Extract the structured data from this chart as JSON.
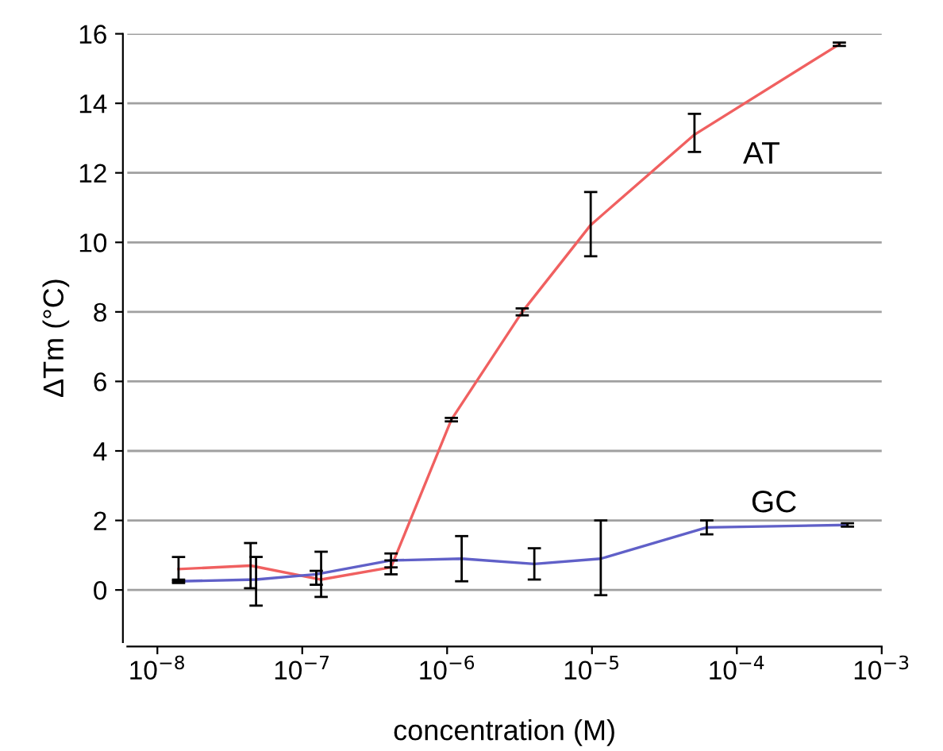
{
  "chart_data": {
    "type": "line",
    "xlabel": "concentration (M)",
    "ylabel": "ΔTm (°C)",
    "log": "x",
    "grid": "y",
    "marker": "none",
    "line_style": "solid",
    "xlim": [
      6.2e-09,
      0.001
    ],
    "ylim": [
      -1.5,
      16
    ],
    "xticks": [
      {
        "value": 1e-08,
        "label": "10$^{−8}$"
      },
      {
        "value": 1e-07,
        "label": "10$^{−7}$"
      },
      {
        "value": 1e-06,
        "label": "10$^{−6}$"
      },
      {
        "value": 1e-05,
        "label": "10$^{−5}$"
      },
      {
        "value": 0.0001,
        "label": "10$^{−4}$"
      },
      {
        "value": 0.001,
        "label": "10$^{−3}$"
      }
    ],
    "yticks": [
      0,
      2,
      4,
      6,
      8,
      10,
      12,
      14,
      16
    ],
    "series": [
      {
        "name": "AT",
        "color": "#f06060",
        "x": [
          1.4e-08,
          4.4e-08,
          1.35e-07,
          4.1e-07,
          1.07e-06,
          3.3e-06,
          9.8e-06,
          5.1e-05,
          0.00051
        ],
        "values": [
          0.6,
          0.7,
          0.3,
          0.65,
          4.9,
          8.0,
          10.5,
          13.1,
          15.7
        ],
        "errors": [
          [
            0.25,
            0.95
          ],
          [
            0.05,
            1.35
          ],
          [
            -0.2,
            1.1
          ],
          [
            0.45,
            0.85
          ],
          [
            4.85,
            4.95
          ],
          [
            7.9,
            8.1
          ],
          [
            9.6,
            11.45
          ],
          [
            12.6,
            13.7
          ],
          [
            15.65,
            15.75
          ]
        ]
      },
      {
        "name": "GC",
        "color": "#6060c8",
        "x": [
          1.4e-08,
          4.8e-08,
          1.25e-07,
          4.1e-07,
          1.26e-06,
          4e-06,
          1.15e-05,
          6.2e-05,
          0.00058
        ],
        "values": [
          0.25,
          0.3,
          0.45,
          0.85,
          0.9,
          0.75,
          0.9,
          1.8,
          1.87
        ],
        "errors": [
          [
            0.2,
            0.3
          ],
          [
            -0.45,
            0.95
          ],
          [
            0.15,
            0.55
          ],
          [
            0.65,
            1.05
          ],
          [
            0.25,
            1.55
          ],
          [
            0.3,
            1.2
          ],
          [
            -0.15,
            2.0
          ],
          [
            1.6,
            2.0
          ],
          [
            1.82,
            1.92
          ]
        ]
      }
    ]
  }
}
